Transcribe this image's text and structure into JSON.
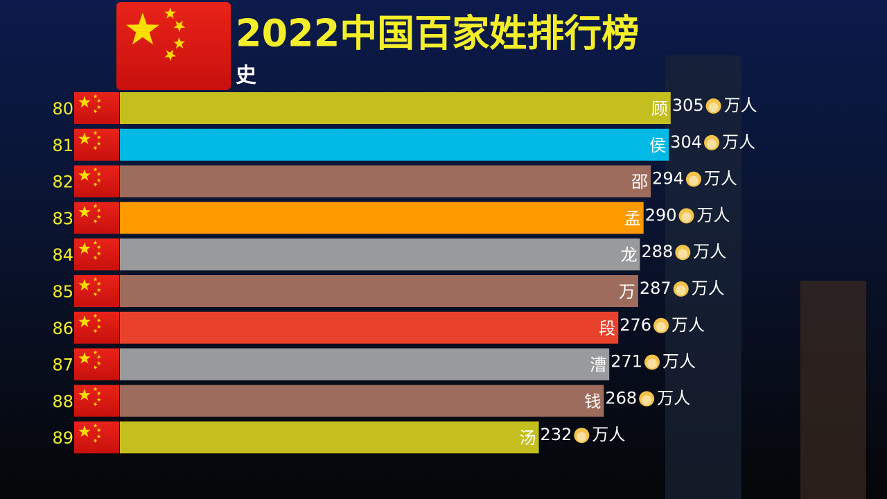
{
  "chart_data": {
    "type": "bar",
    "orientation": "horizontal",
    "title": "2022中国百家姓排行榜",
    "subtitle": "史",
    "unit": "万人",
    "ranks": [
      80,
      81,
      82,
      83,
      84,
      85,
      86,
      87,
      88,
      89
    ],
    "categories": [
      "顾",
      "侯",
      "邵",
      "孟",
      "龙",
      "万",
      "段",
      "漕",
      "钱",
      "汤"
    ],
    "values": [
      305,
      304,
      294,
      290,
      288,
      287,
      276,
      271,
      268,
      232
    ],
    "colors": [
      "#c4bf1e",
      "#00b9e4",
      "#9e6c5c",
      "#ff9a00",
      "#999a9b",
      "#9e6c5c",
      "#e8422c",
      "#999a9b",
      "#9e6c5c",
      "#c4bf1e"
    ],
    "xlim": [
      0,
      307
    ]
  }
}
